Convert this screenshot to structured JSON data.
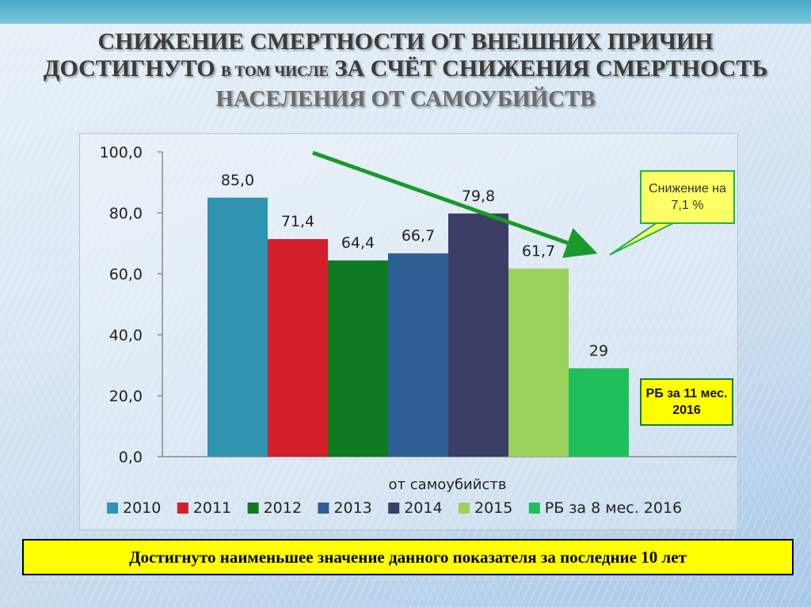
{
  "title": {
    "line1": "СНИЖЕНИЕ СМЕРТНОСТИ ОТ ВНЕШНИХ ПРИЧИН",
    "line2_a": "ДОСТИГНУТО",
    "line2_b": "В ТОМ ЧИСЛЕ",
    "line2_c": "ЗА СЧЁТ СНИЖЕНИЯ СМЕРТНОСТЬ",
    "line3": "НАСЕЛЕНИЯ ОТ САМОУБИЙСТВ"
  },
  "callouts": {
    "decrease": "Снижение на 7,1 %",
    "rb": "РБ за 11 мес. 2016"
  },
  "footer": "Достигнуто наименьшее значение данного показателя за последние 10 лет",
  "colors": {
    "2010": "#2e94b0",
    "2011": "#d21f2b",
    "2012": "#0e7a22",
    "2013": "#2d5f94",
    "2014": "#3c3e66",
    "2015": "#99d35c",
    "rb8": "#1fbf5b",
    "arrow": "#1a9a2a"
  },
  "chart_data": {
    "type": "bar",
    "categories": [
      "от самоубийств"
    ],
    "xlabel": "от самоубийств",
    "ylim": [
      0,
      100
    ],
    "y_ticks": [
      "0,0",
      "20,0",
      "40,0",
      "60,0",
      "80,0",
      "100,0"
    ],
    "grid": false,
    "legend_position": "bottom",
    "series": [
      {
        "name": "2010",
        "values": [
          85.0
        ],
        "label": "85,0",
        "color": "#2e94b0"
      },
      {
        "name": "2011",
        "values": [
          71.4
        ],
        "label": "71,4",
        "color": "#d21f2b"
      },
      {
        "name": "2012",
        "values": [
          64.4
        ],
        "label": "64,4",
        "color": "#0e7a22"
      },
      {
        "name": "2013",
        "values": [
          66.7
        ],
        "label": "66,7",
        "color": "#2d5f94"
      },
      {
        "name": "2014",
        "values": [
          79.8
        ],
        "label": "79,8",
        "color": "#3c3e66"
      },
      {
        "name": "2015",
        "values": [
          61.7
        ],
        "label": "61,7",
        "color": "#99d35c"
      },
      {
        "name": "РБ за 8 мес. 2016",
        "values": [
          29
        ],
        "label": "29",
        "color": "#1fbf5b"
      }
    ]
  }
}
